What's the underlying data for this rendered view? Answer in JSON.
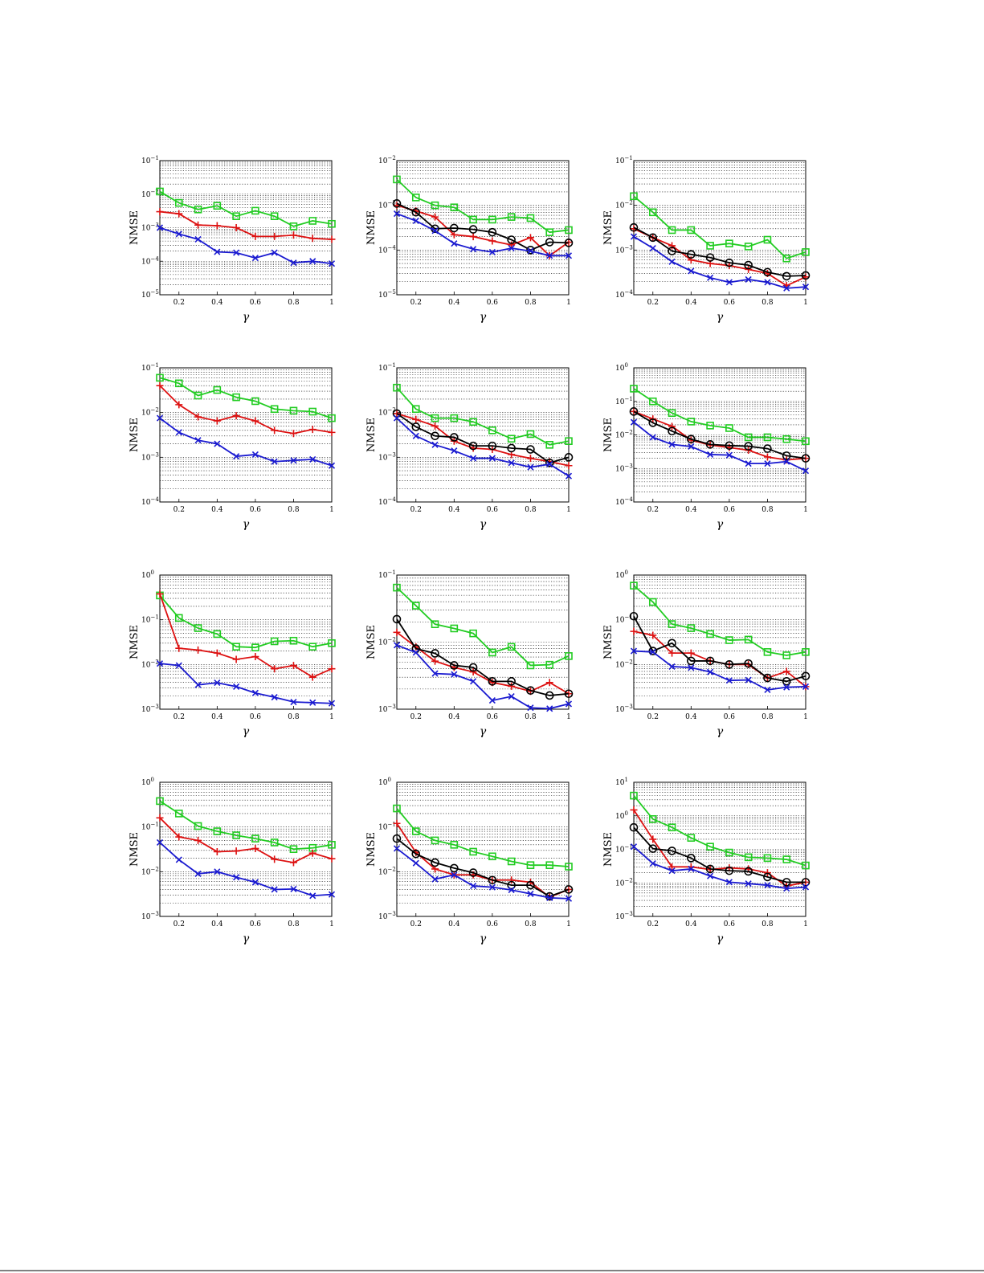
{
  "colors": {
    "green": "#22cc22",
    "red": "#dd1111",
    "black": "#000000",
    "blue": "#1a1ad0"
  },
  "chart_data": [
    {
      "type": "line",
      "ylabel": "NMSE",
      "xlabel": "γ",
      "yscale": "log",
      "ylim_exp": [
        -5,
        -1
      ],
      "xlim": [
        0.1,
        1
      ],
      "xticks": [
        "0.2",
        "0.4",
        "0.6",
        "0.8",
        "1"
      ],
      "grid": true,
      "x": [
        0.1,
        0.2,
        0.3,
        0.4,
        0.5,
        0.6,
        0.7,
        0.8,
        0.9,
        1.0
      ],
      "series": [
        {
          "color": "green",
          "marker": "square",
          "values": [
            0.012,
            0.0055,
            0.0035,
            0.0045,
            0.0022,
            0.0032,
            0.0022,
            0.0011,
            0.0016,
            0.0013
          ]
        },
        {
          "color": "red",
          "marker": "plus",
          "values": [
            0.003,
            0.0026,
            0.0012,
            0.00115,
            0.001,
            0.00055,
            0.00055,
            0.0006,
            0.00048,
            0.00045
          ]
        },
        {
          "color": "blue",
          "marker": "x",
          "values": [
            0.001,
            0.00065,
            0.00045,
            0.00019,
            0.00018,
            0.000125,
            0.00018,
            9e-05,
            0.0001,
            8.5e-05
          ]
        }
      ]
    },
    {
      "type": "line",
      "ylabel": "NMSE",
      "xlabel": "γ",
      "yscale": "log",
      "ylim_exp": [
        -5,
        -2
      ],
      "xlim": [
        0.1,
        1
      ],
      "xticks": [
        "0.2",
        "0.4",
        "0.6",
        "0.8",
        "1"
      ],
      "grid": true,
      "x": [
        0.1,
        0.2,
        0.3,
        0.4,
        0.5,
        0.6,
        0.7,
        0.8,
        0.9,
        1.0
      ],
      "series": [
        {
          "color": "green",
          "marker": "square",
          "values": [
            0.0038,
            0.0015,
            0.001,
            0.0009,
            0.00048,
            0.00048,
            0.00055,
            0.00052,
            0.00025,
            0.00028
          ]
        },
        {
          "color": "red",
          "marker": "plus",
          "values": [
            0.001,
            0.00075,
            0.00055,
            0.00022,
            0.0002,
            0.00016,
            0.00013,
            0.00019,
            7.5e-05,
            0.00015
          ]
        },
        {
          "color": "black",
          "marker": "circle",
          "values": [
            0.0011,
            0.0007,
            0.0003,
            0.00031,
            0.00029,
            0.00025,
            0.00017,
            0.0001,
            0.00015,
            0.000145
          ]
        },
        {
          "color": "blue",
          "marker": "x",
          "values": [
            0.00065,
            0.00045,
            0.00027,
            0.00014,
            0.000105,
            9e-05,
            0.00011,
            9.5e-05,
            7.5e-05,
            7.5e-05
          ]
        }
      ]
    },
    {
      "type": "line",
      "ylabel": "NMSE",
      "xlabel": "γ",
      "yscale": "log",
      "ylim_exp": [
        -4,
        -1
      ],
      "xlim": [
        0.1,
        1
      ],
      "xticks": [
        "0.2",
        "0.4",
        "0.6",
        "0.8",
        "1"
      ],
      "grid": true,
      "x": [
        0.1,
        0.2,
        0.3,
        0.4,
        0.5,
        0.6,
        0.7,
        0.8,
        0.9,
        1.0
      ],
      "series": [
        {
          "color": "green",
          "marker": "square",
          "values": [
            0.016,
            0.007,
            0.0028,
            0.0028,
            0.00125,
            0.0014,
            0.0012,
            0.0017,
            0.00065,
            0.0009
          ]
        },
        {
          "color": "red",
          "marker": "plus",
          "values": [
            0.003,
            0.0019,
            0.00125,
            0.0006,
            0.0005,
            0.00045,
            0.00037,
            0.0003,
            0.00016,
            0.00025
          ]
        },
        {
          "color": "black",
          "marker": "circle",
          "values": [
            0.0032,
            0.0019,
            0.00095,
            0.0008,
            0.00068,
            0.00052,
            0.00046,
            0.00032,
            0.00026,
            0.00027
          ]
        },
        {
          "color": "blue",
          "marker": "x",
          "values": [
            0.002,
            0.0011,
            0.00055,
            0.00034,
            0.00024,
            0.00019,
            0.00022,
            0.00019,
            0.00014,
            0.00015
          ]
        }
      ]
    },
    {
      "type": "line",
      "ylabel": "NMSE",
      "xlabel": "γ",
      "yscale": "log",
      "ylim_exp": [
        -4,
        -1
      ],
      "xlim": [
        0.1,
        1
      ],
      "xticks": [
        "0.2",
        "0.4",
        "0.6",
        "0.8",
        "1"
      ],
      "grid": true,
      "x": [
        0.1,
        0.2,
        0.3,
        0.4,
        0.5,
        0.6,
        0.7,
        0.8,
        0.9,
        1.0
      ],
      "series": [
        {
          "color": "green",
          "marker": "square",
          "values": [
            0.06,
            0.045,
            0.024,
            0.032,
            0.022,
            0.018,
            0.012,
            0.011,
            0.0105,
            0.0075
          ]
        },
        {
          "color": "red",
          "marker": "plus",
          "values": [
            0.04,
            0.015,
            0.008,
            0.0065,
            0.0085,
            0.0065,
            0.004,
            0.0034,
            0.0042,
            0.0036
          ]
        },
        {
          "color": "blue",
          "marker": "x",
          "values": [
            0.0075,
            0.0036,
            0.0024,
            0.002,
            0.00105,
            0.00115,
            0.0008,
            0.00085,
            0.0009,
            0.00065
          ]
        }
      ]
    },
    {
      "type": "line",
      "ylabel": "NMSE",
      "xlabel": "γ",
      "yscale": "log",
      "ylim_exp": [
        -4,
        -1
      ],
      "xlim": [
        0.1,
        1
      ],
      "xticks": [
        "0.2",
        "0.4",
        "0.6",
        "0.8",
        "1"
      ],
      "grid": true,
      "x": [
        0.1,
        0.2,
        0.3,
        0.4,
        0.5,
        0.6,
        0.7,
        0.8,
        0.9,
        1.0
      ],
      "series": [
        {
          "color": "green",
          "marker": "square",
          "values": [
            0.036,
            0.012,
            0.0075,
            0.0075,
            0.0062,
            0.004,
            0.0026,
            0.0033,
            0.0019,
            0.0023
          ]
        },
        {
          "color": "red",
          "marker": "plus",
          "values": [
            0.0095,
            0.007,
            0.005,
            0.0023,
            0.0016,
            0.0015,
            0.00115,
            0.00095,
            0.0008,
            0.00065
          ]
        },
        {
          "color": "black",
          "marker": "circle",
          "values": [
            0.0095,
            0.0048,
            0.003,
            0.0028,
            0.0018,
            0.0018,
            0.0016,
            0.0015,
            0.00075,
            0.001
          ]
        },
        {
          "color": "blue",
          "marker": "x",
          "values": [
            0.0075,
            0.003,
            0.0019,
            0.0014,
            0.00095,
            0.00095,
            0.00075,
            0.0006,
            0.0007,
            0.00038
          ]
        }
      ]
    },
    {
      "type": "line",
      "ylabel": "NMSE",
      "xlabel": "γ",
      "yscale": "log",
      "ylim_exp": [
        -4,
        0
      ],
      "xlim": [
        0.1,
        1
      ],
      "xticks": [
        "0.2",
        "0.4",
        "0.6",
        "0.8",
        "1"
      ],
      "grid": true,
      "x": [
        0.1,
        0.2,
        0.3,
        0.4,
        0.5,
        0.6,
        0.7,
        0.8,
        0.9,
        1.0
      ],
      "series": [
        {
          "color": "green",
          "marker": "square",
          "values": [
            0.24,
            0.1,
            0.045,
            0.025,
            0.019,
            0.016,
            0.0085,
            0.0085,
            0.0075,
            0.0065
          ]
        },
        {
          "color": "red",
          "marker": "plus",
          "values": [
            0.05,
            0.03,
            0.018,
            0.007,
            0.005,
            0.0042,
            0.0035,
            0.0022,
            0.0018,
            0.002
          ]
        },
        {
          "color": "black",
          "marker": "circle",
          "values": [
            0.05,
            0.023,
            0.013,
            0.0075,
            0.0052,
            0.0048,
            0.0046,
            0.0039,
            0.0024,
            0.002
          ]
        },
        {
          "color": "blue",
          "marker": "x",
          "values": [
            0.024,
            0.0085,
            0.0052,
            0.0045,
            0.0026,
            0.0025,
            0.0014,
            0.0014,
            0.0016,
            0.00085
          ]
        }
      ]
    },
    {
      "type": "line",
      "ylabel": "NMSE",
      "xlabel": "γ",
      "yscale": "log",
      "ylim_exp": [
        -3,
        0
      ],
      "xlim": [
        0.1,
        1
      ],
      "xticks": [
        "0.2",
        "0.4",
        "0.6",
        "0.8",
        "1"
      ],
      "grid": true,
      "x": [
        0.1,
        0.2,
        0.3,
        0.4,
        0.5,
        0.6,
        0.7,
        0.8,
        0.9,
        1.0
      ],
      "series": [
        {
          "color": "green",
          "marker": "square",
          "values": [
            0.35,
            0.11,
            0.065,
            0.048,
            0.025,
            0.024,
            0.033,
            0.034,
            0.025,
            0.03
          ]
        },
        {
          "color": "red",
          "marker": "plus",
          "values": [
            0.38,
            0.023,
            0.021,
            0.018,
            0.013,
            0.015,
            0.008,
            0.0095,
            0.0052,
            0.008
          ]
        },
        {
          "color": "blue",
          "marker": "x",
          "values": [
            0.0105,
            0.0095,
            0.0035,
            0.0039,
            0.0032,
            0.0023,
            0.00185,
            0.00145,
            0.0014,
            0.00135
          ]
        }
      ]
    },
    {
      "type": "line",
      "ylabel": "NMSE",
      "xlabel": "γ",
      "yscale": "log",
      "ylim_exp": [
        -3,
        -1
      ],
      "xlim": [
        0.1,
        1
      ],
      "xticks": [
        "0.2",
        "0.4",
        "0.6",
        "0.8",
        "1"
      ],
      "grid": true,
      "x": [
        0.1,
        0.2,
        0.3,
        0.4,
        0.5,
        0.6,
        0.7,
        0.8,
        0.9,
        1.0
      ],
      "series": [
        {
          "color": "green",
          "marker": "square",
          "values": [
            0.065,
            0.035,
            0.0185,
            0.016,
            0.0135,
            0.007,
            0.0085,
            0.0045,
            0.0046,
            0.0062
          ]
        },
        {
          "color": "red",
          "marker": "plus",
          "values": [
            0.014,
            0.0085,
            0.0052,
            0.0042,
            0.0036,
            0.0025,
            0.0022,
            0.00185,
            0.0025,
            0.0017
          ]
        },
        {
          "color": "black",
          "marker": "circle",
          "values": [
            0.022,
            0.008,
            0.0068,
            0.0045,
            0.0042,
            0.0026,
            0.0026,
            0.0019,
            0.0016,
            0.0017
          ]
        },
        {
          "color": "blue",
          "marker": "x",
          "values": [
            0.009,
            0.007,
            0.0034,
            0.0033,
            0.0026,
            0.00135,
            0.00155,
            0.00105,
            0.00102,
            0.0012
          ]
        }
      ]
    },
    {
      "type": "line",
      "ylabel": "NMSE",
      "xlabel": "γ",
      "yscale": "log",
      "ylim_exp": [
        -3,
        0
      ],
      "xlim": [
        0.1,
        1
      ],
      "xticks": [
        "0.2",
        "0.4",
        "0.6",
        "0.8",
        "1"
      ],
      "grid": true,
      "x": [
        0.1,
        0.2,
        0.3,
        0.4,
        0.5,
        0.6,
        0.7,
        0.8,
        0.9,
        1.0
      ],
      "series": [
        {
          "color": "green",
          "marker": "square",
          "values": [
            0.58,
            0.25,
            0.08,
            0.065,
            0.048,
            0.035,
            0.036,
            0.019,
            0.016,
            0.019
          ]
        },
        {
          "color": "red",
          "marker": "plus",
          "values": [
            0.055,
            0.045,
            0.018,
            0.018,
            0.012,
            0.01,
            0.01,
            0.005,
            0.007,
            0.0032
          ]
        },
        {
          "color": "black",
          "marker": "circle",
          "values": [
            0.12,
            0.02,
            0.03,
            0.012,
            0.012,
            0.01,
            0.0105,
            0.005,
            0.0042,
            0.0055
          ]
        },
        {
          "color": "blue",
          "marker": "x",
          "values": [
            0.02,
            0.019,
            0.009,
            0.0085,
            0.0068,
            0.0044,
            0.0045,
            0.0027,
            0.0031,
            0.0032
          ]
        }
      ]
    },
    {
      "type": "line",
      "ylabel": "NMSE",
      "xlabel": "γ",
      "yscale": "log",
      "ylim_exp": [
        -3,
        0
      ],
      "xlim": [
        0.1,
        1
      ],
      "xticks": [
        "0.2",
        "0.4",
        "0.6",
        "0.8",
        "1"
      ],
      "grid": true,
      "x": [
        0.1,
        0.2,
        0.3,
        0.4,
        0.5,
        0.6,
        0.7,
        0.8,
        0.9,
        1.0
      ],
      "series": [
        {
          "color": "green",
          "marker": "square",
          "values": [
            0.38,
            0.2,
            0.105,
            0.08,
            0.065,
            0.055,
            0.045,
            0.032,
            0.034,
            0.04
          ]
        },
        {
          "color": "red",
          "marker": "plus",
          "values": [
            0.16,
            0.06,
            0.05,
            0.028,
            0.029,
            0.033,
            0.019,
            0.016,
            0.026,
            0.0195
          ]
        },
        {
          "color": "blue",
          "marker": "x",
          "values": [
            0.045,
            0.0185,
            0.009,
            0.01,
            0.0075,
            0.0058,
            0.004,
            0.0041,
            0.0029,
            0.0031
          ]
        }
      ]
    },
    {
      "type": "line",
      "ylabel": "NMSE",
      "xlabel": "γ",
      "yscale": "log",
      "ylim_exp": [
        -3,
        0
      ],
      "xlim": [
        0.1,
        1
      ],
      "xticks": [
        "0.2",
        "0.4",
        "0.6",
        "0.8",
        "1"
      ],
      "grid": true,
      "x": [
        0.1,
        0.2,
        0.3,
        0.4,
        0.5,
        0.6,
        0.7,
        0.8,
        0.9,
        1.0
      ],
      "series": [
        {
          "color": "green",
          "marker": "square",
          "values": [
            0.26,
            0.08,
            0.05,
            0.04,
            0.028,
            0.022,
            0.017,
            0.014,
            0.014,
            0.013
          ]
        },
        {
          "color": "red",
          "marker": "plus",
          "values": [
            0.12,
            0.027,
            0.0115,
            0.0085,
            0.0085,
            0.0065,
            0.0065,
            0.0058,
            0.0027,
            0.004
          ]
        },
        {
          "color": "black",
          "marker": "circle",
          "values": [
            0.055,
            0.025,
            0.016,
            0.012,
            0.0095,
            0.0065,
            0.005,
            0.005,
            0.0028,
            0.004
          ]
        },
        {
          "color": "blue",
          "marker": "x",
          "values": [
            0.033,
            0.0155,
            0.0068,
            0.0085,
            0.0048,
            0.0045,
            0.0039,
            0.0032,
            0.0026,
            0.0025
          ]
        }
      ]
    },
    {
      "type": "line",
      "ylabel": "NMSE",
      "xlabel": "γ",
      "yscale": "log",
      "ylim_exp": [
        -3,
        1
      ],
      "xlim": [
        0.1,
        1
      ],
      "xticks": [
        "0.2",
        "0.4",
        "0.6",
        "0.8",
        "1"
      ],
      "grid": true,
      "x": [
        0.1,
        0.2,
        0.3,
        0.4,
        0.5,
        0.6,
        0.7,
        0.8,
        0.9,
        1.0
      ],
      "series": [
        {
          "color": "green",
          "marker": "square",
          "values": [
            4.0,
            0.8,
            0.45,
            0.22,
            0.12,
            0.08,
            0.058,
            0.055,
            0.05,
            0.033
          ]
        },
        {
          "color": "red",
          "marker": "plus",
          "values": [
            1.5,
            0.2,
            0.03,
            0.03,
            0.025,
            0.028,
            0.026,
            0.02,
            0.008,
            0.0105
          ]
        },
        {
          "color": "black",
          "marker": "circle",
          "values": [
            0.45,
            0.105,
            0.09,
            0.055,
            0.026,
            0.023,
            0.022,
            0.015,
            0.0105,
            0.0105
          ]
        },
        {
          "color": "blue",
          "marker": "x",
          "values": [
            0.12,
            0.038,
            0.023,
            0.026,
            0.016,
            0.0105,
            0.0095,
            0.0085,
            0.0068,
            0.0075
          ]
        }
      ]
    }
  ]
}
